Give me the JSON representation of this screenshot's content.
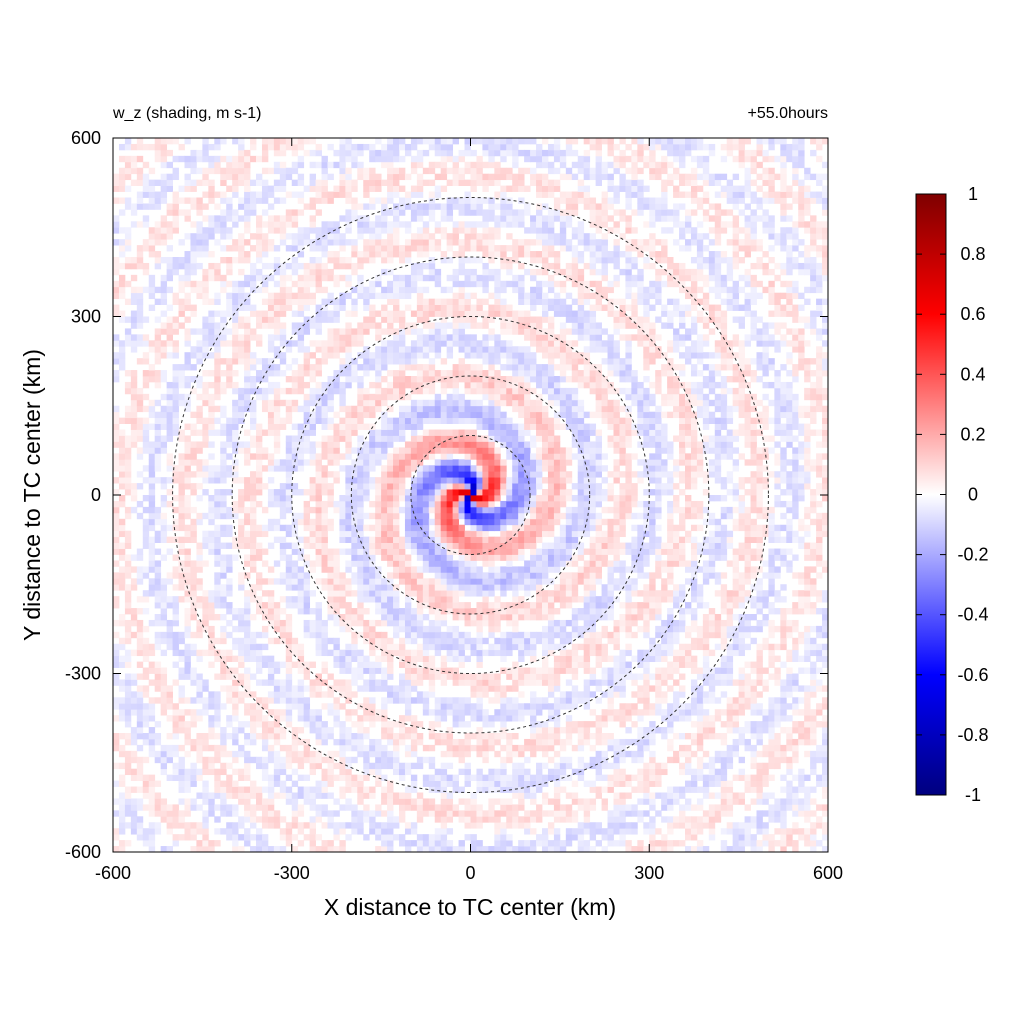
{
  "chart_data": {
    "type": "heatmap",
    "title_left": "w_z (shading, m s-1)",
    "title_right": "+55.0hours",
    "xlabel": "X distance to TC center (km)",
    "ylabel": "Y distance to TC center (km)",
    "xlim": [
      -600,
      600
    ],
    "ylim": [
      -600,
      600
    ],
    "x_ticks": [
      -600,
      -300,
      0,
      300,
      600
    ],
    "y_ticks": [
      -600,
      -300,
      0,
      300,
      600
    ],
    "x_tick_labels": [
      "-600",
      "-300",
      "0",
      "300",
      "600"
    ],
    "y_tick_labels": [
      "-600",
      "-300",
      "0",
      "300",
      "600"
    ],
    "grid": false,
    "range_rings_km": [
      100,
      200,
      300,
      400,
      500
    ],
    "colorbar": {
      "min": -1,
      "max": 1,
      "ticks": [
        1,
        0.8,
        0.6,
        0.4,
        0.2,
        0,
        -0.2,
        -0.4,
        -0.6,
        -0.8,
        -1
      ],
      "tick_labels": [
        "1",
        "0.8",
        "0.6",
        "0.4",
        "0.2",
        "0",
        "-0.2",
        "-0.4",
        "-0.6",
        "-0.8",
        "-1"
      ],
      "colors": {
        "-1": "#00007f",
        "-0.6": "#0000ff",
        "0": "#ffffff",
        "0.6": "#ff0000",
        "1": "#7f0000"
      }
    },
    "field_description": "near-zero noisy field with spiral bands; strongest +/- values (about +/-0.8) within 100 km of center"
  }
}
